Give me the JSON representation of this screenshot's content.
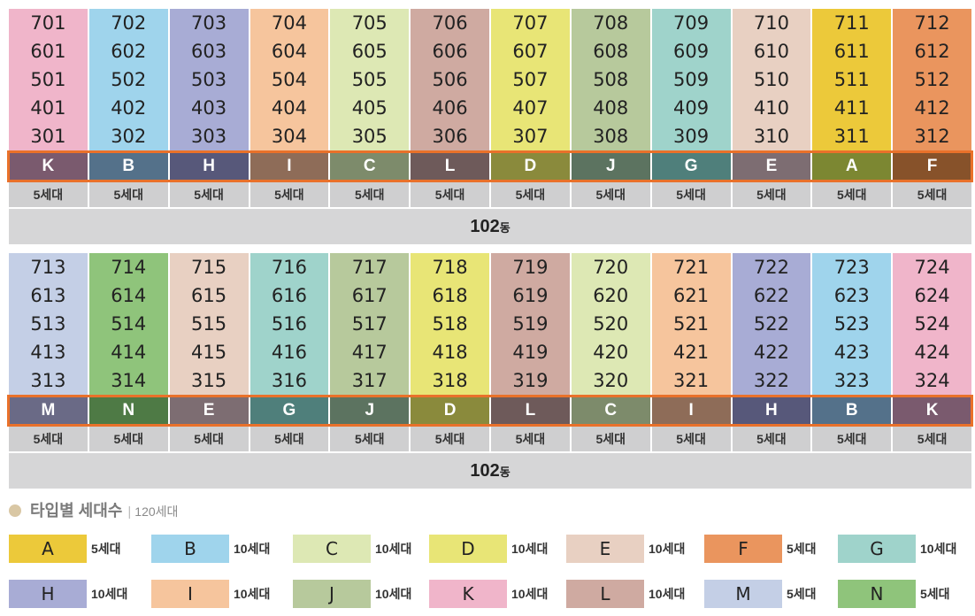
{
  "colors": {
    "A": "#ecc93a",
    "B": "#9fd4ec",
    "C": "#dde8b4",
    "D": "#e8e576",
    "E": "#e8d0c2",
    "F": "#ea955e",
    "G": "#9fd3cb",
    "H": "#a8acd5",
    "I": "#f6c59d",
    "J": "#b7c99c",
    "K": "#f0b5ca",
    "L": "#cfaaa1",
    "M": "#c4cfe6",
    "N": "#8fc47b"
  },
  "bar_colors": {
    "A": "#7c8732",
    "B": "#54718a",
    "C": "#7d8b6b",
    "D": "#8a8a3c",
    "E": "#7d6d72",
    "F": "#87522a",
    "G": "#4f7f7b",
    "H": "#57587a",
    "I": "#8e6c58",
    "J": "#5c7360",
    "K": "#7a5a6e",
    "L": "#6e5a5a",
    "M": "#6a6a86",
    "N": "#4e7a45"
  },
  "blocks": [
    {
      "building": "102",
      "building_suffix": "동",
      "types": [
        "K",
        "B",
        "H",
        "I",
        "C",
        "L",
        "D",
        "J",
        "G",
        "E",
        "A",
        "F"
      ],
      "counts": [
        "5세대",
        "5세대",
        "5세대",
        "5세대",
        "5세대",
        "5세대",
        "5세대",
        "5세대",
        "5세대",
        "5세대",
        "5세대",
        "5세대"
      ],
      "rows": [
        [
          "701",
          "702",
          "703",
          "704",
          "705",
          "706",
          "707",
          "708",
          "709",
          "710",
          "711",
          "712"
        ],
        [
          "601",
          "602",
          "603",
          "604",
          "605",
          "606",
          "607",
          "608",
          "609",
          "610",
          "611",
          "612"
        ],
        [
          "501",
          "502",
          "503",
          "504",
          "505",
          "506",
          "507",
          "508",
          "509",
          "510",
          "511",
          "512"
        ],
        [
          "401",
          "402",
          "403",
          "404",
          "405",
          "406",
          "407",
          "408",
          "409",
          "410",
          "411",
          "412"
        ],
        [
          "301",
          "302",
          "303",
          "304",
          "305",
          "306",
          "307",
          "308",
          "309",
          "310",
          "311",
          "312"
        ]
      ]
    },
    {
      "building": "102",
      "building_suffix": "동",
      "types": [
        "M",
        "N",
        "E",
        "G",
        "J",
        "D",
        "L",
        "C",
        "I",
        "H",
        "B",
        "K"
      ],
      "counts": [
        "5세대",
        "5세대",
        "5세대",
        "5세대",
        "5세대",
        "5세대",
        "5세대",
        "5세대",
        "5세대",
        "5세대",
        "5세대",
        "5세대"
      ],
      "rows": [
        [
          "713",
          "714",
          "715",
          "716",
          "717",
          "718",
          "719",
          "720",
          "721",
          "722",
          "723",
          "724"
        ],
        [
          "613",
          "614",
          "615",
          "616",
          "617",
          "618",
          "619",
          "620",
          "621",
          "622",
          "623",
          "624"
        ],
        [
          "513",
          "514",
          "515",
          "516",
          "517",
          "518",
          "519",
          "520",
          "521",
          "522",
          "523",
          "524"
        ],
        [
          "413",
          "414",
          "415",
          "416",
          "417",
          "418",
          "419",
          "420",
          "421",
          "422",
          "423",
          "424"
        ],
        [
          "313",
          "314",
          "315",
          "316",
          "317",
          "318",
          "319",
          "320",
          "321",
          "322",
          "323",
          "324"
        ]
      ]
    }
  ],
  "legend": {
    "title": "타입별 세대수",
    "total": "120세대",
    "items": [
      {
        "type": "A",
        "count": "5세대"
      },
      {
        "type": "B",
        "count": "10세대"
      },
      {
        "type": "C",
        "count": "10세대"
      },
      {
        "type": "D",
        "count": "10세대"
      },
      {
        "type": "E",
        "count": "10세대"
      },
      {
        "type": "F",
        "count": "5세대"
      },
      {
        "type": "G",
        "count": "10세대"
      },
      {
        "type": "H",
        "count": "10세대"
      },
      {
        "type": "I",
        "count": "10세대"
      },
      {
        "type": "J",
        "count": "10세대"
      },
      {
        "type": "K",
        "count": "10세대"
      },
      {
        "type": "L",
        "count": "10세대"
      },
      {
        "type": "M",
        "count": "5세대"
      },
      {
        "type": "N",
        "count": "5세대"
      }
    ]
  }
}
